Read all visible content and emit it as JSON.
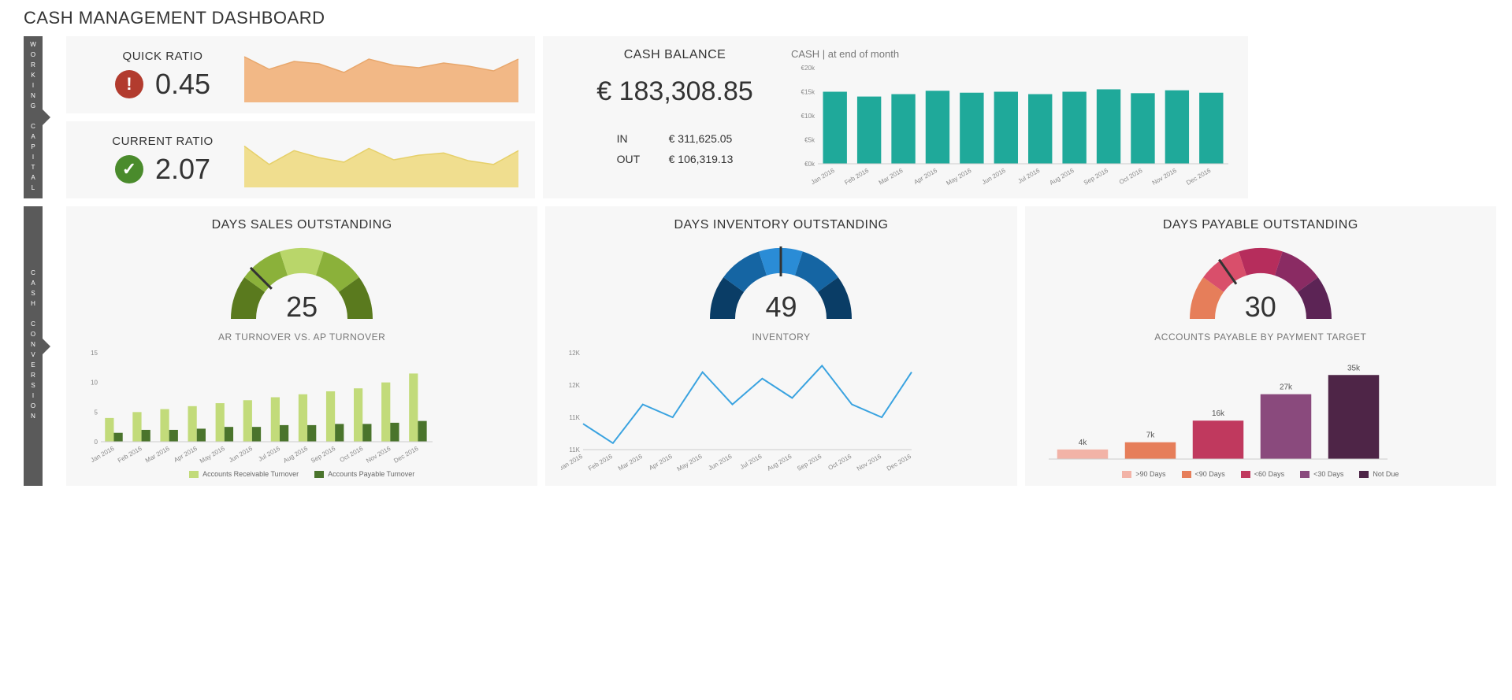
{
  "title": "CASH MANAGEMENT DASHBOARD",
  "sections": {
    "working_capital": {
      "tab": "WORKING CAPITAL"
    },
    "cash_conversion": {
      "tab": "CASH CONVERSION"
    }
  },
  "months": [
    "Jan 2016",
    "Feb 2016",
    "Mar 2016",
    "Apr 2016",
    "May 2016",
    "Jun 2016",
    "Jul 2016",
    "Aug 2016",
    "Sep 2016",
    "Oct 2016",
    "Nov 2016",
    "Dec 2016"
  ],
  "quick_ratio": {
    "title": "QUICK RATIO",
    "value": "0.45",
    "status": "alert",
    "status_color": "#b23b2e",
    "sparkline": {
      "type": "area",
      "values": [
        0.58,
        0.42,
        0.52,
        0.49,
        0.38,
        0.55,
        0.47,
        0.44,
        0.5,
        0.46,
        0.4,
        0.55
      ],
      "ymin": 0.0,
      "ymax": 0.7,
      "fill_color": "#f2b886",
      "line_color": "#e8a76c"
    }
  },
  "current_ratio": {
    "title": "CURRENT RATIO",
    "value": "2.07",
    "status": "ok",
    "status_color": "#4a8b2c",
    "sparkline": {
      "type": "area",
      "values": [
        2.3,
        1.9,
        2.2,
        2.05,
        1.95,
        2.25,
        2.0,
        2.1,
        2.15,
        1.98,
        1.9,
        2.2
      ],
      "ymin": 1.4,
      "ymax": 2.6,
      "fill_color": "#f0de8f",
      "line_color": "#e6d06a"
    }
  },
  "cash_balance": {
    "title": "CASH BALANCE",
    "value": "€ 183,308.85",
    "in_label": "IN",
    "in_value": "€ 311,625.05",
    "out_label": "OUT",
    "out_value": "€ 106,319.13",
    "chart": {
      "type": "bar",
      "title": "CASH | at end of month",
      "values": [
        15,
        14,
        14.5,
        15.2,
        14.8,
        15,
        14.5,
        15,
        15.5,
        14.7,
        15.3,
        14.8
      ],
      "ylim": [
        0,
        20
      ],
      "ytick_step": 5,
      "y_prefix": "€",
      "y_suffix": "k",
      "bar_color": "#1fa99a",
      "axis_color": "#cccccc",
      "tick_label_color": "#888888",
      "tick_fontsize": 8
    }
  },
  "dso": {
    "title": "DAYS SALES OUTSTANDING",
    "value": "25",
    "gauge": {
      "type": "gauge",
      "segments": 5,
      "colors": [
        "#5a7a1e",
        "#8bb13a",
        "#b9d66a",
        "#8bb13a",
        "#5a7a1e"
      ],
      "needle_angle_deg": 45,
      "needle_color": "#333333"
    },
    "sub_title": "AR TURNOVER VS. AP TURNOVER",
    "chart": {
      "type": "grouped-bar",
      "series": [
        {
          "label": "Accounts Receivable Turnover",
          "color": "#c2db7a",
          "values": [
            4,
            5,
            5.5,
            6,
            6.5,
            7,
            7.5,
            8,
            8.5,
            9,
            10,
            11.5
          ]
        },
        {
          "label": "Accounts Payable Turnover",
          "color": "#4a742c",
          "values": [
            1.5,
            2,
            2,
            2.2,
            2.5,
            2.5,
            2.8,
            2.8,
            3,
            3,
            3.2,
            3.5
          ]
        }
      ],
      "ylim": [
        0,
        15
      ],
      "ytick_step": 5,
      "axis_color": "#cccccc",
      "tick_label_color": "#888888",
      "tick_fontsize": 8
    }
  },
  "dio": {
    "title": "DAYS INVENTORY OUTSTANDING",
    "value": "49",
    "gauge": {
      "type": "gauge",
      "segments": 5,
      "colors": [
        "#0a3d66",
        "#1565a3",
        "#2a8cd6",
        "#1565a3",
        "#0a3d66"
      ],
      "needle_angle_deg": 90,
      "needle_color": "#333333"
    },
    "sub_title": "INVENTORY",
    "chart": {
      "type": "line",
      "values": [
        11.4,
        11.1,
        11.7,
        11.5,
        12.2,
        11.7,
        12.1,
        11.8,
        12.3,
        11.7,
        11.5,
        12.2
      ],
      "ylim": [
        11,
        12.5
      ],
      "yticks": [
        11,
        11,
        12,
        12
      ],
      "ytick_labels": [
        "11K",
        "11K",
        "12K",
        "12K"
      ],
      "line_color": "#3aa3e0",
      "line_width": 2,
      "axis_color": "#cccccc",
      "tick_label_color": "#888888",
      "tick_fontsize": 8
    }
  },
  "dpo": {
    "title": "DAYS PAYABLE OUTSTANDING",
    "value": "30",
    "gauge": {
      "type": "gauge",
      "segments": 5,
      "colors": [
        "#e67e5a",
        "#d94f6b",
        "#b62d5c",
        "#8a2b63",
        "#5c2455"
      ],
      "needle_angle_deg": 55,
      "needle_color": "#333333"
    },
    "sub_title": "ACCOUNTS PAYABLE BY PAYMENT TARGET",
    "chart": {
      "type": "bar",
      "categories": [
        ">90 Days",
        "<90 Days",
        "<60 Days",
        "<30 Days",
        "Not Due"
      ],
      "values": [
        4,
        7,
        16,
        27,
        35
      ],
      "value_labels": [
        "4k",
        "7k",
        "16k",
        "27k",
        "35k"
      ],
      "colors": [
        "#f2b3a7",
        "#e67e5a",
        "#c0395e",
        "#8a4a7d",
        "#4e2547"
      ],
      "ylim": [
        0,
        40
      ],
      "axis_color": "#cccccc",
      "tick_label_color": "#888888",
      "tick_fontsize": 9,
      "label_fontsize": 10
    }
  }
}
